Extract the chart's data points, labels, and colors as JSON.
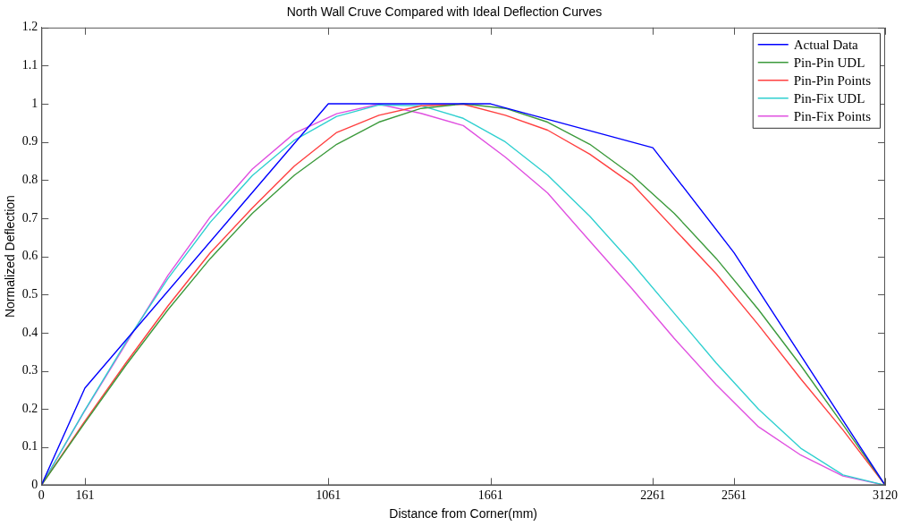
{
  "chart_data": {
    "type": "line",
    "title": "North Wall Cruve Compared with Ideal Deflection Curves",
    "xlabel": "Distance from Corner(mm)",
    "ylabel": "Normalized Deflection",
    "x": [
      0,
      156,
      312,
      468,
      624,
      780,
      936,
      1092,
      1248,
      1404,
      1560,
      1716,
      1872,
      2028,
      2184,
      2340,
      2496,
      2652,
      2808,
      2964,
      3120
    ],
    "xlim": [
      0,
      3120
    ],
    "xticks": [
      0,
      161,
      1061,
      1661,
      2261,
      2561,
      3120
    ],
    "ylim": [
      0,
      1.2
    ],
    "yticks": [
      0,
      0.1,
      0.2,
      0.3,
      0.4,
      0.5,
      0.6,
      0.7,
      0.8,
      0.9,
      1,
      1.1,
      1.2
    ],
    "grid": false,
    "legend": "top right",
    "marker": "none",
    "line_style": "solid",
    "series": [
      {
        "name": "Actual Data",
        "color": "#0000ff",
        "x": [
          0,
          161,
          1061,
          1661,
          2261,
          2561,
          3120
        ],
        "values": [
          0,
          0.255,
          1,
          1,
          0.885,
          0.61,
          0
        ]
      },
      {
        "name": "Pin-Pin UDL",
        "color": "#3c9a3c",
        "values": [
          0,
          0.159,
          0.314,
          0.46,
          0.594,
          0.713,
          0.813,
          0.894,
          0.952,
          0.988,
          1,
          0.988,
          0.952,
          0.894,
          0.813,
          0.713,
          0.594,
          0.46,
          0.314,
          0.159,
          0
        ]
      },
      {
        "name": "Pin-Pin Points",
        "color": "#ff4040",
        "values": [
          0,
          0.163,
          0.32,
          0.47,
          0.609,
          0.727,
          0.837,
          0.925,
          0.97,
          0.995,
          0.999,
          0.97,
          0.931,
          0.868,
          0.79,
          0.672,
          0.554,
          0.42,
          0.279,
          0.145,
          0
        ]
      },
      {
        "name": "Pin-Fix UDL",
        "color": "#30d0d0",
        "values": [
          0,
          0.191,
          0.374,
          0.542,
          0.689,
          0.812,
          0.905,
          0.967,
          0.997,
          0.995,
          0.962,
          0.9,
          0.813,
          0.705,
          0.582,
          0.451,
          0.32,
          0.199,
          0.097,
          0.027,
          0
        ]
      },
      {
        "name": "Pin-Fix Points",
        "color": "#e050e0",
        "values": [
          0,
          0.19,
          0.37,
          0.55,
          0.703,
          0.829,
          0.923,
          0.974,
          0.999,
          0.975,
          0.943,
          0.86,
          0.766,
          0.64,
          0.515,
          0.385,
          0.263,
          0.153,
          0.079,
          0.024,
          0
        ]
      }
    ]
  }
}
